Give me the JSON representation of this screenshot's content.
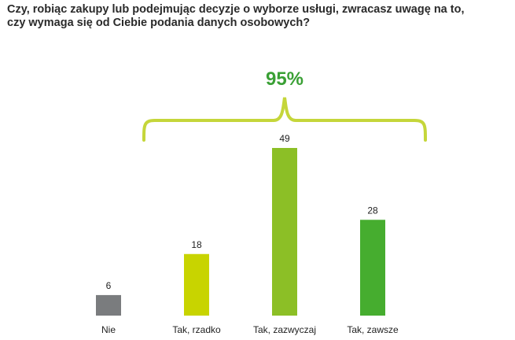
{
  "title_lines": [
    "Czy, robiąc zakupy lub podejmując decyzje o wyborze usługi, zwracasz uwagę na to,",
    "czy wymaga się od Ciebie podania danych osobowych?"
  ],
  "chart_data": {
    "type": "bar",
    "categories": [
      "Nie",
      "Tak, rzadko",
      "Tak, zazwyczaj",
      "Tak, zawsze"
    ],
    "values": [
      6,
      18,
      49,
      28
    ],
    "colors": [
      "#7a7c7e",
      "#c8d400",
      "#8cbf26",
      "#46ad2f"
    ],
    "ylim": [
      0,
      49
    ],
    "grid": false,
    "legend": "none",
    "annotation": {
      "text": "95%",
      "spans_categories": [
        1,
        3
      ],
      "color": "#3aa035",
      "brace_color": "#c5d63a"
    }
  }
}
